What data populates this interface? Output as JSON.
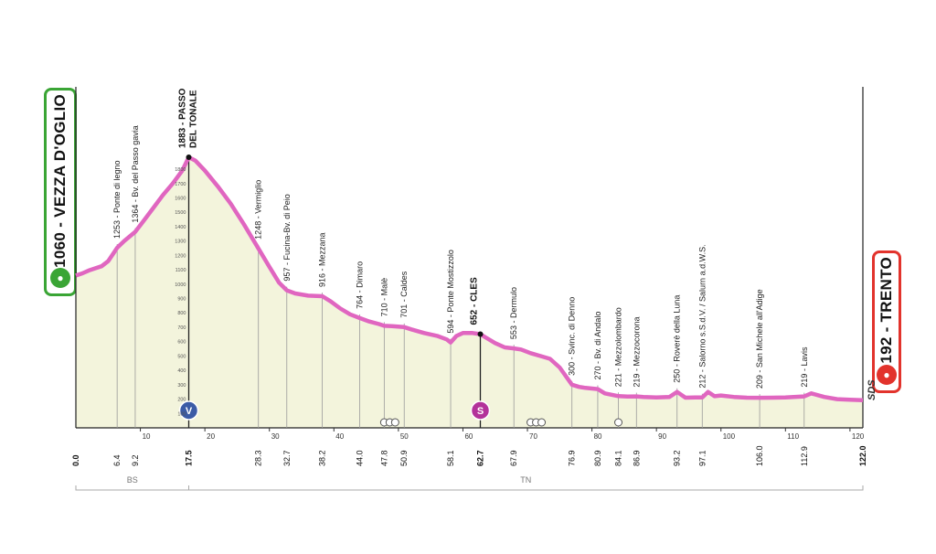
{
  "chart_data": {
    "type": "area",
    "title": "",
    "xlabel": "",
    "ylabel": "",
    "start": {
      "elevation": "1060",
      "name": "VEZZA D'OGLIO"
    },
    "finish": {
      "elevation": "192",
      "name": "TRENTO"
    },
    "xlim": [
      0,
      122
    ],
    "ylim": [
      0,
      1900
    ],
    "x_ticks": [
      "10",
      "20",
      "30",
      "40",
      "50",
      "60",
      "70",
      "80",
      "90",
      "100",
      "110",
      "120"
    ],
    "y_ticks": [
      "100",
      "200",
      "300",
      "400",
      "500",
      "600",
      "700",
      "800",
      "900",
      "1000",
      "1100",
      "1200",
      "1300",
      "1400",
      "1500",
      "1600",
      "1700",
      "1800"
    ],
    "profile": [
      [
        0,
        1060
      ],
      [
        1,
        1075
      ],
      [
        2,
        1095
      ],
      [
        3,
        1110
      ],
      [
        4,
        1125
      ],
      [
        5,
        1160
      ],
      [
        6.4,
        1253
      ],
      [
        7.5,
        1300
      ],
      [
        9.2,
        1364
      ],
      [
        10.5,
        1440
      ],
      [
        12,
        1530
      ],
      [
        13.5,
        1620
      ],
      [
        15,
        1700
      ],
      [
        16.5,
        1790
      ],
      [
        17.5,
        1883
      ],
      [
        18.5,
        1860
      ],
      [
        20,
        1790
      ],
      [
        22,
        1680
      ],
      [
        24,
        1560
      ],
      [
        26,
        1420
      ],
      [
        28.3,
        1248
      ],
      [
        30,
        1120
      ],
      [
        31.5,
        1010
      ],
      [
        32.7,
        957
      ],
      [
        34,
        935
      ],
      [
        36,
        920
      ],
      [
        38.2,
        916
      ],
      [
        39.5,
        880
      ],
      [
        41,
        830
      ],
      [
        42.5,
        790
      ],
      [
        44,
        764
      ],
      [
        45.5,
        740
      ],
      [
        47,
        722
      ],
      [
        47.8,
        710
      ],
      [
        49,
        708
      ],
      [
        50.9,
        701
      ],
      [
        52,
        685
      ],
      [
        54,
        660
      ],
      [
        56,
        640
      ],
      [
        57.5,
        615
      ],
      [
        58.1,
        594
      ],
      [
        59,
        640
      ],
      [
        60,
        660
      ],
      [
        61.5,
        660
      ],
      [
        62.7,
        652
      ],
      [
        63.5,
        630
      ],
      [
        65,
        590
      ],
      [
        66.5,
        560
      ],
      [
        67.9,
        553
      ],
      [
        69,
        545
      ],
      [
        70.5,
        520
      ],
      [
        72,
        500
      ],
      [
        73.5,
        480
      ],
      [
        75,
        420
      ],
      [
        76.9,
        300
      ],
      [
        78,
        285
      ],
      [
        79,
        278
      ],
      [
        80.9,
        270
      ],
      [
        82,
        240
      ],
      [
        84.1,
        221
      ],
      [
        85.5,
        218
      ],
      [
        86.9,
        219
      ],
      [
        88,
        215
      ],
      [
        90,
        212
      ],
      [
        92,
        215
      ],
      [
        93.2,
        250
      ],
      [
        94.5,
        210
      ],
      [
        96,
        212
      ],
      [
        97.1,
        212
      ],
      [
        98,
        250
      ],
      [
        99,
        220
      ],
      [
        100,
        225
      ],
      [
        102,
        215
      ],
      [
        104,
        210
      ],
      [
        106,
        209
      ],
      [
        108,
        210
      ],
      [
        110,
        212
      ],
      [
        112.9,
        219
      ],
      [
        114,
        240
      ],
      [
        116,
        215
      ],
      [
        118,
        200
      ],
      [
        120,
        195
      ],
      [
        122,
        192
      ]
    ],
    "markers": [
      {
        "km": 6.4,
        "label": "1253 - Ponte di legno"
      },
      {
        "km": 9.2,
        "label": "1364 - Bv. del Passo gavia"
      },
      {
        "km": 28.3,
        "label": "1248 - Vermiglio"
      },
      {
        "km": 32.7,
        "label": "957 - Fucina-Bv. di Peio"
      },
      {
        "km": 38.2,
        "label": "916 - Mezzana"
      },
      {
        "km": 44.0,
        "label": "764 - Dimaro"
      },
      {
        "km": 47.8,
        "label": "710 - Malè"
      },
      {
        "km": 50.9,
        "label": "701 - Caldes"
      },
      {
        "km": 58.1,
        "label": "594 - Ponte Mostizzolo"
      },
      {
        "km": 67.9,
        "label": "553 - Dermulo"
      },
      {
        "km": 76.9,
        "label": "300 - Svinc. di Denno"
      },
      {
        "km": 80.9,
        "label": "270 - Bv. di Andalo"
      },
      {
        "km": 84.1,
        "label": "221 - Mezzolombardo"
      },
      {
        "km": 86.9,
        "label": "219 - Mezzocorona"
      },
      {
        "km": 93.2,
        "label": "250 - Roverè della Luna"
      },
      {
        "km": 97.1,
        "label": "212 - Salorno s.S.d.V. / Salurn a.d.W.S."
      },
      {
        "km": 106.0,
        "label": "209 - San Michele all'Adige"
      },
      {
        "km": 112.9,
        "label": "219 - Lavis"
      }
    ],
    "bold_markers": [
      {
        "km": 17.5,
        "lines": [
          "1883 - PASSO",
          "DEL TONALE"
        ],
        "icon": "V"
      },
      {
        "km": 62.7,
        "lines": [
          "652 - CLES"
        ],
        "icon": "S"
      }
    ],
    "distances": [
      "0.0",
      "6.4",
      "9.2",
      "17.5",
      "28.3",
      "32.7",
      "38.2",
      "44.0",
      "47.8",
      "50.9",
      "58.1",
      "62.7",
      "67.9",
      "76.9",
      "80.9",
      "84.1",
      "86.9",
      "93.2",
      "97.1",
      "106.0",
      "112.9",
      "122.0"
    ],
    "bold_distances": [
      "0.0",
      "17.5",
      "62.7",
      "122.0"
    ],
    "regions": [
      {
        "from": 0,
        "to": 17.5,
        "label": "BS"
      },
      {
        "from": 17.5,
        "to": 122,
        "label": "TN"
      }
    ],
    "footer_code": "SDS",
    "colors": {
      "profile_line": "#e066c0",
      "fill": "#f3f4dc",
      "start": "#3aa535",
      "finish": "#e2332c",
      "grid": "#9a9a9a",
      "kom_icon": "#3b5ba6",
      "sprint_icon": "#b3329a"
    }
  }
}
